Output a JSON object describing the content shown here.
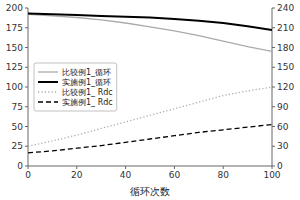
{
  "chart_data": {
    "type": "line",
    "xlabel": "循环次数",
    "x": [
      0,
      10,
      20,
      30,
      40,
      50,
      60,
      70,
      80,
      90,
      100
    ],
    "xlim": [
      0,
      100
    ],
    "xticks": [
      0,
      20,
      40,
      60,
      80,
      100
    ],
    "ylim": [
      0,
      200
    ],
    "yticks": [
      0,
      25,
      50,
      75,
      100,
      125,
      150,
      175,
      200
    ],
    "y2lim": [
      0,
      240
    ],
    "y2ticks": [
      0,
      30,
      60,
      90,
      120,
      150,
      180,
      210,
      240
    ],
    "grid": false,
    "legend": "center left",
    "series": [
      {
        "name": "比较例1_循环",
        "color": "#aaaaaa",
        "line_style": "solid",
        "values": [
          192,
          190,
          188,
          185,
          181,
          176,
          171,
          165,
          158,
          151,
          145
        ]
      },
      {
        "name": "实施例1_循环",
        "color": "#000000",
        "line_style": "solid",
        "values": [
          193,
          192,
          191,
          190,
          189,
          188,
          186,
          184,
          181,
          177,
          172
        ]
      },
      {
        "name": "比较例1_ Rdc",
        "color": "#aaaaaa",
        "line_style": "dotted",
        "axis": "y2",
        "values": [
          30,
          38,
          47,
          57,
          67,
          77,
          87,
          97,
          107,
          114,
          120
        ]
      },
      {
        "name": "实施例1_ Rdc",
        "color": "#000000",
        "line_style": "dashed",
        "axis": "y2",
        "values": [
          20,
          23,
          27,
          31,
          36,
          41,
          46,
          51,
          55,
          59,
          63
        ]
      }
    ]
  }
}
